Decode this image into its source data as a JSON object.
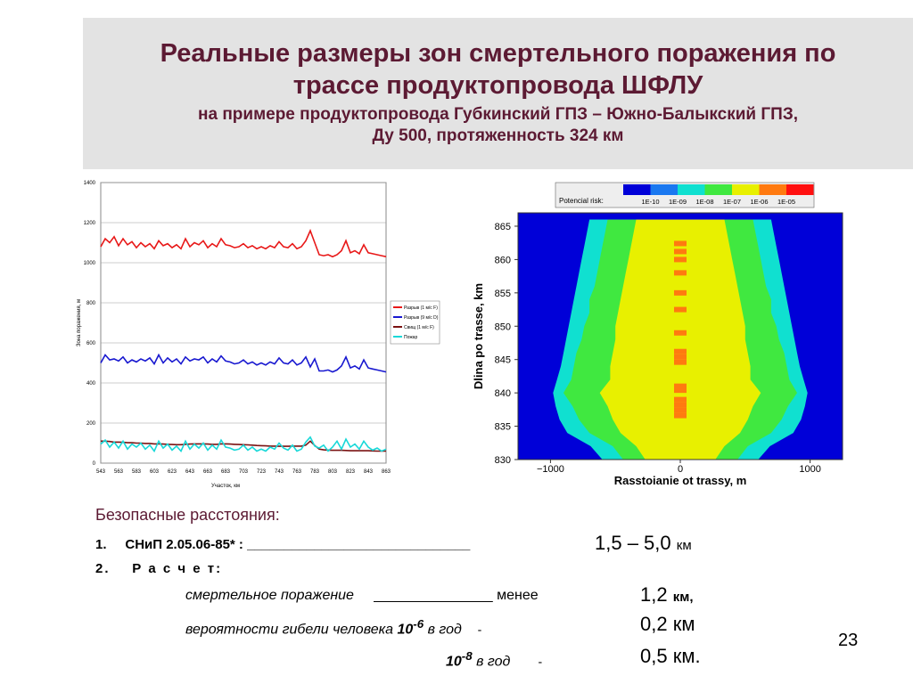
{
  "header": {
    "title_line1": "Реальные размеры зон смертельного поражения по",
    "title_line2": "трассе продуктопровода ШФЛУ",
    "subtitle_line1": "на примере продуктопровода Губкинский ГПЗ – Южно-Балыкский ГПЗ,",
    "subtitle_line2": "Ду 500, протяженность 324 км"
  },
  "chart_data": [
    {
      "type": "line",
      "ylabel": "Зона поражения, м",
      "xlabel": "Участок, км",
      "ylim": [
        0,
        1400
      ],
      "xlim": [
        543,
        863
      ],
      "y_ticks": [
        0,
        200,
        400,
        600,
        800,
        1000,
        1200,
        1400
      ],
      "x_ticks": [
        "543",
        "563",
        "583",
        "603",
        "623",
        "643",
        "663",
        "683",
        "703",
        "723",
        "743",
        "763",
        "783",
        "803",
        "823",
        "843",
        "863"
      ],
      "grid": true,
      "legend_position": "right",
      "series": [
        {
          "name": "Разрыв (1 м/с F)",
          "color": "#e81818",
          "x": [
            543,
            548,
            553,
            558,
            563,
            568,
            573,
            578,
            583,
            588,
            593,
            598,
            603,
            608,
            613,
            618,
            623,
            628,
            633,
            638,
            643,
            648,
            653,
            658,
            663,
            668,
            673,
            678,
            683,
            688,
            693,
            698,
            703,
            708,
            713,
            718,
            723,
            728,
            733,
            738,
            743,
            748,
            753,
            758,
            763,
            768,
            773,
            778,
            783,
            788,
            793,
            798,
            803,
            808,
            813,
            818,
            823,
            828,
            833,
            838,
            843,
            848,
            853,
            858,
            863
          ],
          "y": [
            1080,
            1120,
            1100,
            1130,
            1085,
            1120,
            1090,
            1105,
            1075,
            1100,
            1080,
            1095,
            1070,
            1110,
            1085,
            1095,
            1075,
            1090,
            1070,
            1120,
            1080,
            1100,
            1090,
            1110,
            1075,
            1095,
            1080,
            1120,
            1090,
            1085,
            1075,
            1080,
            1095,
            1075,
            1085,
            1070,
            1080,
            1070,
            1085,
            1075,
            1105,
            1080,
            1075,
            1095,
            1070,
            1080,
            1110,
            1160,
            1100,
            1040,
            1035,
            1040,
            1030,
            1040,
            1060,
            1110,
            1050,
            1060,
            1045,
            1090,
            1050,
            1045,
            1040,
            1035,
            1030
          ]
        },
        {
          "name": "Разрыв (9 м/с D)",
          "color": "#1818d0",
          "x": [
            543,
            548,
            553,
            558,
            563,
            568,
            573,
            578,
            583,
            588,
            593,
            598,
            603,
            608,
            613,
            618,
            623,
            628,
            633,
            638,
            643,
            648,
            653,
            658,
            663,
            668,
            673,
            678,
            683,
            688,
            693,
            698,
            703,
            708,
            713,
            718,
            723,
            728,
            733,
            738,
            743,
            748,
            753,
            758,
            763,
            768,
            773,
            778,
            783,
            788,
            793,
            798,
            803,
            808,
            813,
            818,
            823,
            828,
            833,
            838,
            843,
            848,
            853,
            858,
            863
          ],
          "y": [
            500,
            540,
            515,
            520,
            510,
            530,
            500,
            515,
            505,
            520,
            510,
            525,
            495,
            540,
            500,
            525,
            505,
            520,
            495,
            530,
            510,
            520,
            515,
            530,
            500,
            520,
            505,
            535,
            510,
            505,
            495,
            500,
            515,
            495,
            505,
            490,
            500,
            490,
            505,
            495,
            525,
            500,
            495,
            515,
            490,
            500,
            530,
            480,
            520,
            460,
            460,
            465,
            455,
            465,
            485,
            530,
            475,
            485,
            470,
            515,
            475,
            470,
            465,
            460,
            455
          ]
        },
        {
          "name": "Свищ (1 м/с F)",
          "color": "#7a1212",
          "x": [
            543,
            548,
            553,
            558,
            563,
            568,
            573,
            578,
            583,
            588,
            593,
            598,
            603,
            608,
            613,
            618,
            623,
            628,
            633,
            638,
            643,
            648,
            653,
            658,
            663,
            668,
            673,
            678,
            683,
            688,
            693,
            698,
            703,
            708,
            713,
            718,
            723,
            728,
            733,
            738,
            743,
            748,
            753,
            758,
            763,
            768,
            773,
            778,
            783,
            788,
            793,
            798,
            803,
            808,
            813,
            818,
            823,
            828,
            833,
            838,
            843,
            848,
            853,
            858,
            863
          ],
          "y": [
            110,
            110,
            108,
            105,
            105,
            104,
            102,
            102,
            100,
            100,
            98,
            98,
            96,
            96,
            95,
            94,
            93,
            92,
            92,
            94,
            95,
            96,
            96,
            96,
            95,
            94,
            94,
            96,
            96,
            95,
            94,
            93,
            92,
            91,
            90,
            88,
            87,
            86,
            85,
            85,
            84,
            84,
            84,
            85,
            85,
            85,
            90,
            110,
            88,
            70,
            66,
            65,
            64,
            64,
            64,
            63,
            62,
            62,
            62,
            62,
            62,
            61,
            60,
            60,
            60
          ]
        },
        {
          "name": "Пожар",
          "color": "#18d8d8",
          "x": [
            543,
            548,
            553,
            558,
            563,
            568,
            573,
            578,
            583,
            588,
            593,
            598,
            603,
            608,
            613,
            618,
            623,
            628,
            633,
            638,
            643,
            648,
            653,
            658,
            663,
            668,
            673,
            678,
            683,
            688,
            693,
            698,
            703,
            708,
            713,
            718,
            723,
            728,
            733,
            738,
            743,
            748,
            753,
            758,
            763,
            768,
            773,
            778,
            783,
            788,
            793,
            798,
            803,
            808,
            813,
            818,
            823,
            828,
            833,
            838,
            843,
            848,
            853,
            858,
            863
          ],
          "y": [
            95,
            115,
            80,
            105,
            75,
            110,
            70,
            95,
            80,
            100,
            70,
            90,
            60,
            110,
            75,
            95,
            65,
            85,
            60,
            110,
            70,
            95,
            75,
            100,
            65,
            90,
            70,
            115,
            80,
            75,
            65,
            70,
            90,
            65,
            80,
            60,
            70,
            60,
            80,
            70,
            100,
            75,
            65,
            90,
            60,
            70,
            105,
            130,
            85,
            75,
            90,
            60,
            80,
            110,
            70,
            120,
            80,
            95,
            70,
            110,
            80,
            65,
            75,
            60,
            70
          ]
        }
      ]
    },
    {
      "type": "heatmap",
      "legend_title": "Potencial risk:",
      "legend_labels": [
        "1E-10",
        "1E-09",
        "1E-08",
        "1E-07",
        "1E-06",
        "1E-05"
      ],
      "colors": [
        "#0000d8",
        "#1a78f0",
        "#10e0d0",
        "#40e840",
        "#e8f000",
        "#ff7a10",
        "#ff1010"
      ],
      "xlabel": "Rasstoianie ot trassy, m",
      "ylabel": "Dlina po trasse, km",
      "xlim": [
        -1250,
        1250
      ],
      "ylim": [
        830,
        867
      ],
      "x_ticks": [
        "−1000",
        "0",
        "1000"
      ],
      "y_ticks": [
        "830",
        "835",
        "840",
        "845",
        "850",
        "855",
        "860",
        "865"
      ],
      "zone_profile": [
        {
          "km": 830,
          "blue_edge": 1000,
          "cyan": 600,
          "green": 440,
          "yellow": 270
        },
        {
          "km": 832,
          "blue_edge": 1000,
          "cyan": 690,
          "green": 520,
          "yellow": 340
        },
        {
          "km": 834,
          "blue_edge": 1000,
          "cyan": 870,
          "green": 700,
          "yellow": 460
        },
        {
          "km": 836,
          "blue_edge": 1000,
          "cyan": 930,
          "green": 780,
          "yellow": 520
        },
        {
          "km": 838,
          "blue_edge": 1000,
          "cyan": 960,
          "green": 830,
          "yellow": 560
        },
        {
          "km": 840,
          "blue_edge": 1000,
          "cyan": 980,
          "green": 900,
          "yellow": 620
        },
        {
          "km": 842,
          "blue_edge": 1000,
          "cyan": 950,
          "green": 840,
          "yellow": 540
        },
        {
          "km": 844,
          "blue_edge": 1000,
          "cyan": 920,
          "green": 820,
          "yellow": 540
        },
        {
          "km": 846,
          "blue_edge": 1000,
          "cyan": 900,
          "green": 800,
          "yellow": 520
        },
        {
          "km": 848,
          "blue_edge": 1000,
          "cyan": 880,
          "green": 760,
          "yellow": 500
        },
        {
          "km": 850,
          "blue_edge": 1000,
          "cyan": 860,
          "green": 740,
          "yellow": 500
        },
        {
          "km": 852,
          "blue_edge": 1000,
          "cyan": 840,
          "green": 700,
          "yellow": 480
        },
        {
          "km": 854,
          "blue_edge": 1000,
          "cyan": 820,
          "green": 700,
          "yellow": 460
        },
        {
          "km": 856,
          "blue_edge": 1000,
          "cyan": 800,
          "green": 660,
          "yellow": 440
        },
        {
          "km": 858,
          "blue_edge": 1000,
          "cyan": 780,
          "green": 640,
          "yellow": 420
        },
        {
          "km": 860,
          "blue_edge": 1000,
          "cyan": 760,
          "green": 620,
          "yellow": 400
        },
        {
          "km": 862,
          "blue_edge": 1000,
          "cyan": 740,
          "green": 600,
          "yellow": 380
        },
        {
          "km": 864,
          "blue_edge": 1000,
          "cyan": 720,
          "green": 580,
          "yellow": 360
        },
        {
          "km": 866,
          "blue_edge": 1000,
          "cyan": 700,
          "green": 560,
          "yellow": 340
        }
      ],
      "high_risk_spots_km": [
        836.6,
        837.4,
        838.2,
        839.0,
        840.4,
        841.0,
        844.6,
        845.4,
        846.2,
        849.0,
        852.5,
        855.0,
        858.0,
        860.0,
        861.2,
        862.4
      ]
    }
  ],
  "safe_distances": {
    "title": "Безопасные расстояния:",
    "item1_num": "1.",
    "item1_label": "СНиП 2.05.06-85* : ______________________________",
    "item1_range": "1,5 – 5,0",
    "item1_unit": "км",
    "item2_num": "2.",
    "item2_label": "Р а с ч е т:",
    "row3_label": "смертельное поражение",
    "row3_line": "_______________",
    "row3_less": "менее",
    "row3_value": "1,2",
    "row3_unit": "км,",
    "row4_label": "вероятности гибели человека",
    "row4_base": "10",
    "row4_exp": "-6",
    "row4_suffix": "в год",
    "row4_dash": "-",
    "row4_value": "0,2 км",
    "row5_base": "10",
    "row5_exp": "-8",
    "row5_suffix": "в год",
    "row5_dash": "-",
    "row5_value": "0,5 км."
  },
  "page_number": "23"
}
